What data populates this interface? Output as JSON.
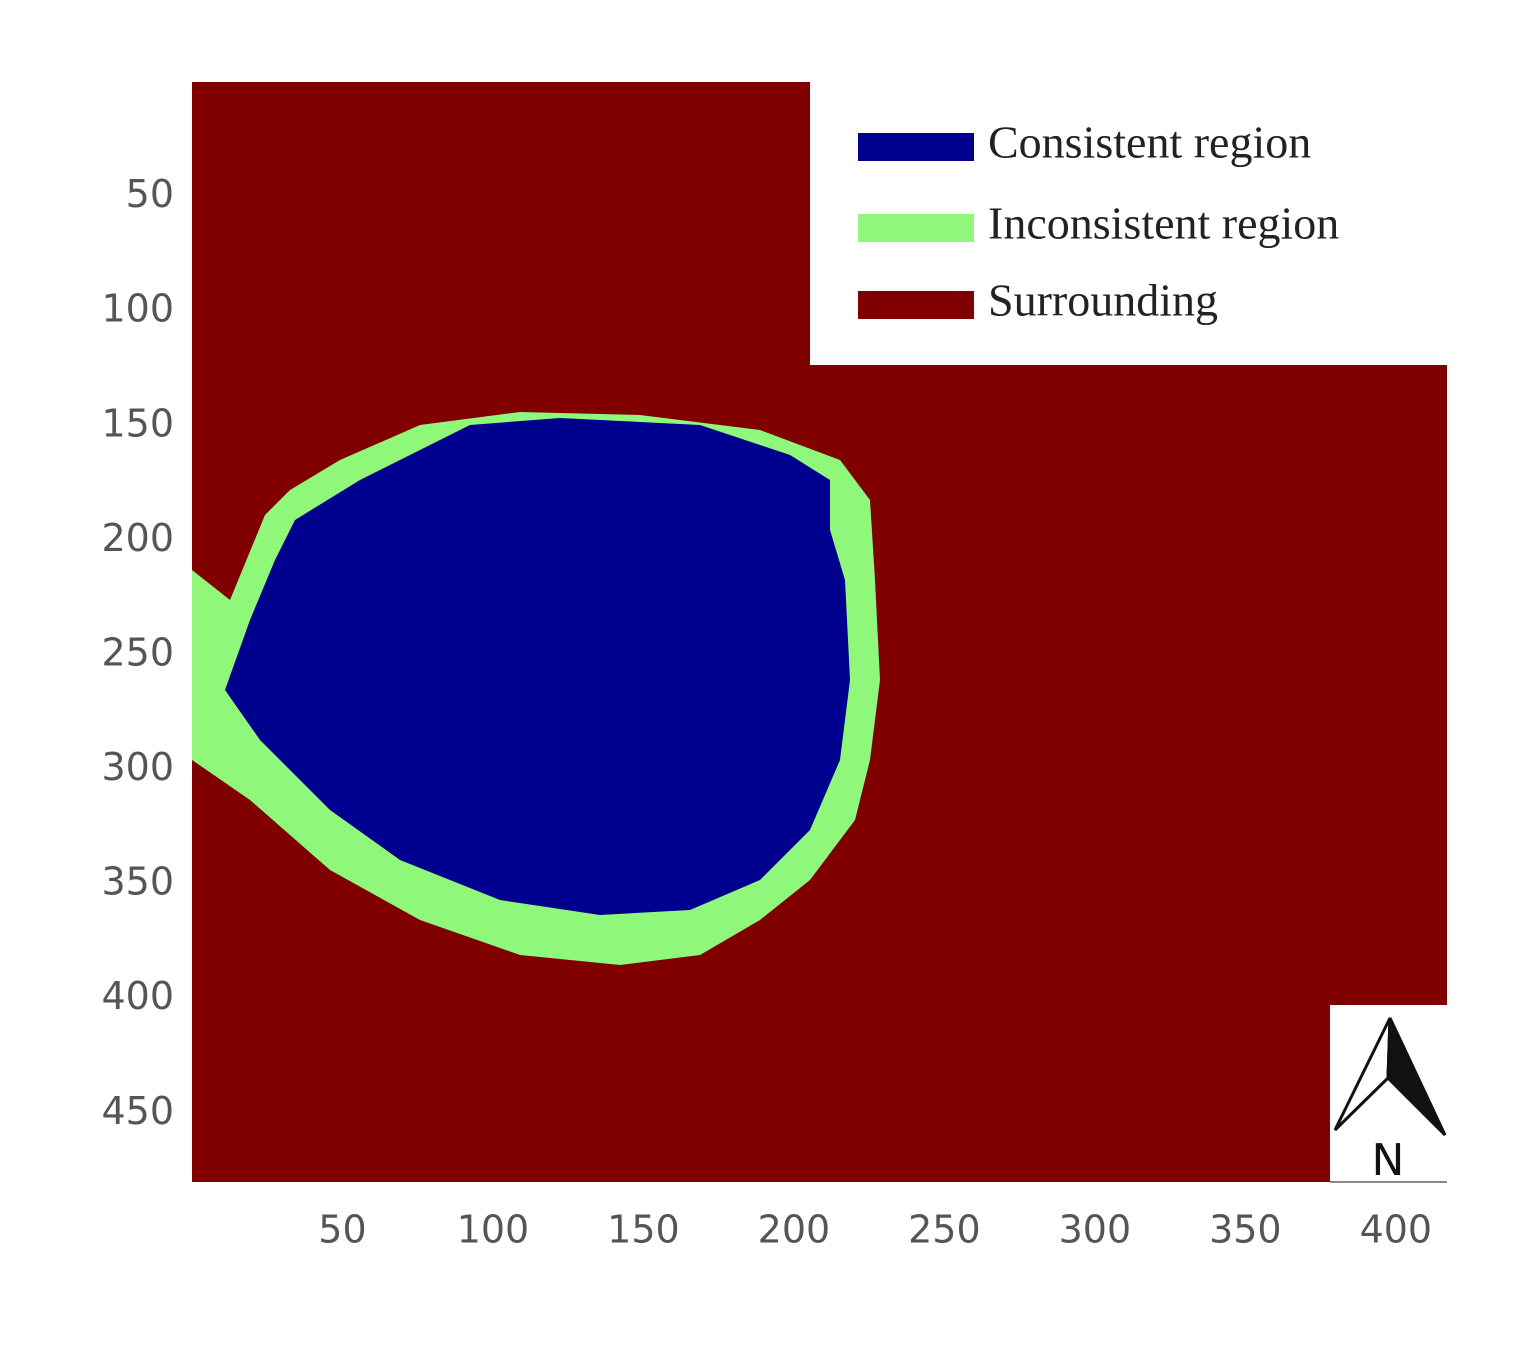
{
  "chart_data": {
    "type": "map",
    "xlim": [
      0,
      417
    ],
    "xticks": [
      50,
      100,
      150,
      200,
      250,
      300,
      350,
      400
    ],
    "ylim": [
      0,
      480
    ],
    "yticks": [
      50,
      100,
      150,
      200,
      250,
      300,
      350,
      400,
      450
    ],
    "y_inverted": true,
    "legend": [
      {
        "name": "Consistent region",
        "color": "#00008f"
      },
      {
        "name": "Inconsistent region",
        "color": "#8ff77a"
      },
      {
        "name": "Surrounding",
        "color": "#800000"
      }
    ],
    "north_label": "N"
  }
}
